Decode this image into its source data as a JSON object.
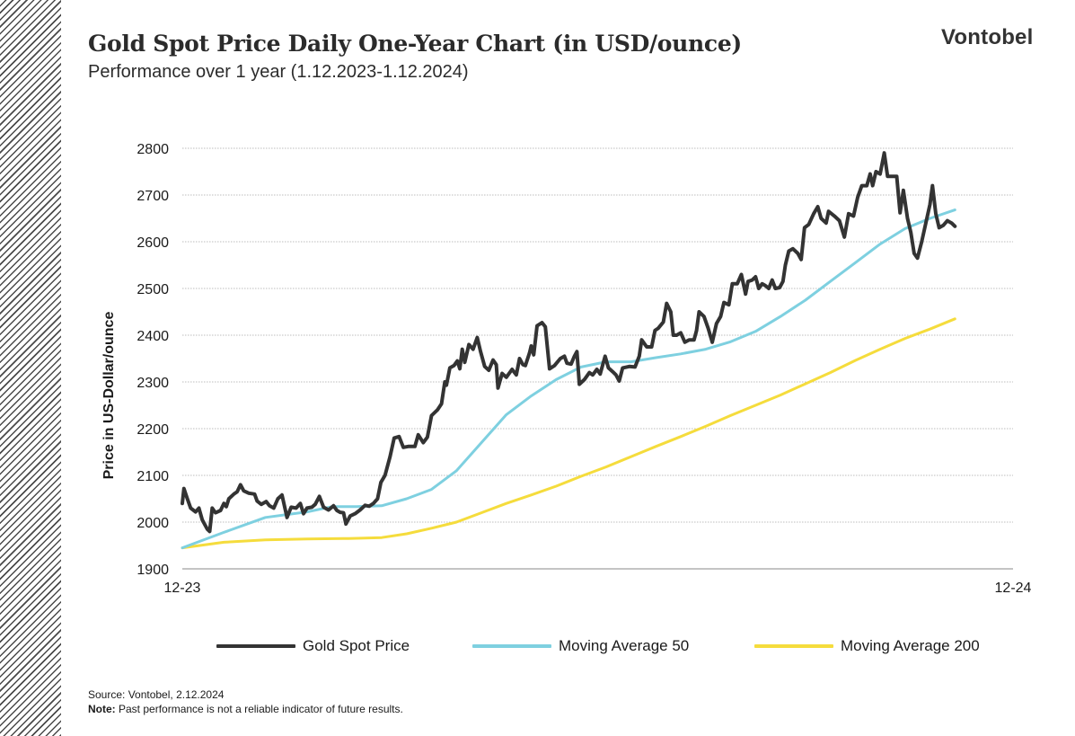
{
  "header": {
    "title": "Gold Spot Price Daily One-Year Chart (in USD/ounce)",
    "subtitle": "Performance over 1 year (1.12.2023-1.12.2024)",
    "brand": "Vontobel"
  },
  "footer": {
    "source": "Source: Vontobel,  2.12.2024",
    "note_label": "Note:",
    "note_text": " Past performance  is not a reliable indicator of future results."
  },
  "chart_data": {
    "type": "line",
    "title": "Gold Spot Price Daily One-Year Chart (in USD/ounce)",
    "subtitle": "Performance over 1 year (1.12.2023-1.12.2024)",
    "ylabel": "Price in US-Dollar/ounce",
    "xlabel": "",
    "x_tick_labels": [
      "12-23",
      "12-24"
    ],
    "x_range": [
      0,
      1
    ],
    "ylim": [
      1900,
      2800
    ],
    "yticks": [
      1900,
      2000,
      2100,
      2200,
      2300,
      2400,
      2500,
      2600,
      2700,
      2800
    ],
    "grid": "horizontal",
    "legend_position": "bottom",
    "x_note": "x values are fractions of the one-year period 12-23 to 12-24",
    "series": [
      {
        "name": "Gold Spot Price",
        "color": "#333333",
        "points": [
          [
            0.0,
            2040
          ],
          [
            0.002,
            2072
          ],
          [
            0.006,
            2050
          ],
          [
            0.01,
            2030
          ],
          [
            0.016,
            2022
          ],
          [
            0.02,
            2030
          ],
          [
            0.024,
            2005
          ],
          [
            0.03,
            1985
          ],
          [
            0.033,
            1980
          ],
          [
            0.036,
            2030
          ],
          [
            0.04,
            2020
          ],
          [
            0.046,
            2025
          ],
          [
            0.05,
            2040
          ],
          [
            0.053,
            2033
          ],
          [
            0.056,
            2050
          ],
          [
            0.062,
            2060
          ],
          [
            0.066,
            2065
          ],
          [
            0.07,
            2080
          ],
          [
            0.074,
            2067
          ],
          [
            0.08,
            2062
          ],
          [
            0.087,
            2060
          ],
          [
            0.09,
            2045
          ],
          [
            0.095,
            2038
          ],
          [
            0.101,
            2044
          ],
          [
            0.105,
            2035
          ],
          [
            0.11,
            2030
          ],
          [
            0.115,
            2050
          ],
          [
            0.12,
            2058
          ],
          [
            0.126,
            2010
          ],
          [
            0.131,
            2032
          ],
          [
            0.137,
            2030
          ],
          [
            0.142,
            2040
          ],
          [
            0.146,
            2018
          ],
          [
            0.15,
            2030
          ],
          [
            0.156,
            2032
          ],
          [
            0.16,
            2038
          ],
          [
            0.165,
            2055
          ],
          [
            0.17,
            2032
          ],
          [
            0.176,
            2026
          ],
          [
            0.182,
            2035
          ],
          [
            0.186,
            2025
          ],
          [
            0.19,
            2021
          ],
          [
            0.194,
            2020
          ],
          [
            0.197,
            1996
          ],
          [
            0.202,
            2013
          ],
          [
            0.208,
            2018
          ],
          [
            0.214,
            2026
          ],
          [
            0.22,
            2036
          ],
          [
            0.225,
            2034
          ],
          [
            0.23,
            2040
          ],
          [
            0.235,
            2050
          ],
          [
            0.239,
            2085
          ],
          [
            0.244,
            2100
          ],
          [
            0.25,
            2140
          ],
          [
            0.255,
            2180
          ],
          [
            0.261,
            2183
          ],
          [
            0.266,
            2160
          ],
          [
            0.272,
            2162
          ],
          [
            0.28,
            2162
          ],
          [
            0.284,
            2187
          ],
          [
            0.29,
            2170
          ],
          [
            0.295,
            2182
          ],
          [
            0.3,
            2228
          ],
          [
            0.307,
            2240
          ],
          [
            0.312,
            2253
          ],
          [
            0.316,
            2300
          ],
          [
            0.318,
            2293
          ],
          [
            0.322,
            2330
          ],
          [
            0.327,
            2335
          ],
          [
            0.331,
            2345
          ],
          [
            0.334,
            2328
          ],
          [
            0.337,
            2370
          ],
          [
            0.34,
            2342
          ],
          [
            0.345,
            2380
          ],
          [
            0.35,
            2370
          ],
          [
            0.355,
            2395
          ],
          [
            0.359,
            2365
          ],
          [
            0.364,
            2333
          ],
          [
            0.369,
            2325
          ],
          [
            0.374,
            2347
          ],
          [
            0.378,
            2337
          ],
          [
            0.38,
            2287
          ],
          [
            0.385,
            2318
          ],
          [
            0.39,
            2310
          ],
          [
            0.397,
            2327
          ],
          [
            0.402,
            2315
          ],
          [
            0.406,
            2350
          ],
          [
            0.41,
            2337
          ],
          [
            0.413,
            2335
          ],
          [
            0.418,
            2362
          ],
          [
            0.42,
            2377
          ],
          [
            0.423,
            2358
          ],
          [
            0.427,
            2420
          ],
          [
            0.433,
            2427
          ],
          [
            0.437,
            2418
          ],
          [
            0.442,
            2328
          ],
          [
            0.448,
            2335
          ],
          [
            0.455,
            2350
          ],
          [
            0.46,
            2355
          ],
          [
            0.463,
            2340
          ],
          [
            0.468,
            2338
          ],
          [
            0.472,
            2355
          ],
          [
            0.475,
            2365
          ],
          [
            0.478,
            2295
          ],
          [
            0.484,
            2305
          ],
          [
            0.49,
            2320
          ],
          [
            0.494,
            2315
          ],
          [
            0.499,
            2327
          ],
          [
            0.503,
            2317
          ],
          [
            0.509,
            2355
          ],
          [
            0.513,
            2330
          ],
          [
            0.518,
            2322
          ],
          [
            0.522,
            2315
          ],
          [
            0.526,
            2302
          ],
          [
            0.53,
            2330
          ],
          [
            0.538,
            2333
          ],
          [
            0.545,
            2332
          ],
          [
            0.55,
            2355
          ],
          [
            0.553,
            2390
          ],
          [
            0.559,
            2375
          ],
          [
            0.565,
            2375
          ],
          [
            0.569,
            2410
          ],
          [
            0.573,
            2415
          ],
          [
            0.579,
            2428
          ],
          [
            0.583,
            2468
          ],
          [
            0.588,
            2450
          ],
          [
            0.591,
            2400
          ],
          [
            0.595,
            2400
          ],
          [
            0.6,
            2405
          ],
          [
            0.605,
            2385
          ],
          [
            0.61,
            2390
          ],
          [
            0.616,
            2390
          ],
          [
            0.619,
            2410
          ],
          [
            0.622,
            2450
          ],
          [
            0.628,
            2440
          ],
          [
            0.633,
            2415
          ],
          [
            0.638,
            2385
          ],
          [
            0.643,
            2425
          ],
          [
            0.648,
            2440
          ],
          [
            0.652,
            2470
          ],
          [
            0.658,
            2465
          ],
          [
            0.662,
            2510
          ],
          [
            0.668,
            2510
          ],
          [
            0.673,
            2530
          ],
          [
            0.678,
            2488
          ],
          [
            0.681,
            2515
          ],
          [
            0.686,
            2518
          ],
          [
            0.69,
            2525
          ],
          [
            0.694,
            2500
          ],
          [
            0.698,
            2510
          ],
          [
            0.702,
            2506
          ],
          [
            0.706,
            2500
          ],
          [
            0.71,
            2518
          ],
          [
            0.714,
            2500
          ],
          [
            0.719,
            2502
          ],
          [
            0.723,
            2515
          ],
          [
            0.726,
            2550
          ],
          [
            0.73,
            2580
          ],
          [
            0.735,
            2585
          ],
          [
            0.741,
            2575
          ],
          [
            0.745,
            2562
          ],
          [
            0.749,
            2630
          ],
          [
            0.754,
            2637
          ],
          [
            0.76,
            2660
          ],
          [
            0.765,
            2675
          ],
          [
            0.769,
            2650
          ],
          [
            0.775,
            2640
          ],
          [
            0.778,
            2665
          ],
          [
            0.785,
            2655
          ],
          [
            0.791,
            2645
          ],
          [
            0.797,
            2610
          ],
          [
            0.802,
            2660
          ],
          [
            0.808,
            2655
          ],
          [
            0.813,
            2695
          ],
          [
            0.818,
            2720
          ],
          [
            0.824,
            2720
          ],
          [
            0.828,
            2745
          ],
          [
            0.831,
            2720
          ],
          [
            0.835,
            2750
          ],
          [
            0.84,
            2745
          ],
          [
            0.845,
            2790
          ],
          [
            0.849,
            2740
          ],
          [
            0.853,
            2740
          ],
          [
            0.86,
            2740
          ],
          [
            0.864,
            2662
          ],
          [
            0.868,
            2710
          ],
          [
            0.873,
            2650
          ],
          [
            0.877,
            2620
          ],
          [
            0.881,
            2575
          ],
          [
            0.885,
            2565
          ],
          [
            0.89,
            2600
          ],
          [
            0.895,
            2640
          ],
          [
            0.9,
            2680
          ],
          [
            0.903,
            2720
          ],
          [
            0.907,
            2660
          ],
          [
            0.911,
            2630
          ],
          [
            0.916,
            2635
          ],
          [
            0.921,
            2645
          ],
          [
            0.926,
            2640
          ],
          [
            0.93,
            2633
          ]
        ]
      },
      {
        "name": "Moving Average 50",
        "color": "#7ed0e0",
        "points": [
          [
            0.0,
            1945
          ],
          [
            0.05,
            1978
          ],
          [
            0.1,
            2010
          ],
          [
            0.15,
            2022
          ],
          [
            0.18,
            2033
          ],
          [
            0.21,
            2033
          ],
          [
            0.24,
            2035
          ],
          [
            0.27,
            2050
          ],
          [
            0.3,
            2070
          ],
          [
            0.33,
            2110
          ],
          [
            0.36,
            2170
          ],
          [
            0.39,
            2230
          ],
          [
            0.42,
            2270
          ],
          [
            0.45,
            2305
          ],
          [
            0.48,
            2332
          ],
          [
            0.51,
            2343
          ],
          [
            0.54,
            2343
          ],
          [
            0.57,
            2352
          ],
          [
            0.6,
            2360
          ],
          [
            0.63,
            2370
          ],
          [
            0.66,
            2386
          ],
          [
            0.69,
            2408
          ],
          [
            0.72,
            2440
          ],
          [
            0.75,
            2475
          ],
          [
            0.78,
            2515
          ],
          [
            0.81,
            2555
          ],
          [
            0.84,
            2595
          ],
          [
            0.87,
            2628
          ],
          [
            0.9,
            2650
          ],
          [
            0.93,
            2668
          ]
        ]
      },
      {
        "name": "Moving Average 200",
        "color": "#f5dc3c",
        "points": [
          [
            0.0,
            1945
          ],
          [
            0.05,
            1957
          ],
          [
            0.1,
            1962
          ],
          [
            0.15,
            1964
          ],
          [
            0.2,
            1965
          ],
          [
            0.24,
            1967
          ],
          [
            0.27,
            1975
          ],
          [
            0.3,
            1987
          ],
          [
            0.33,
            2000
          ],
          [
            0.36,
            2020
          ],
          [
            0.39,
            2040
          ],
          [
            0.42,
            2058
          ],
          [
            0.45,
            2077
          ],
          [
            0.48,
            2098
          ],
          [
            0.51,
            2118
          ],
          [
            0.54,
            2140
          ],
          [
            0.57,
            2162
          ],
          [
            0.6,
            2183
          ],
          [
            0.63,
            2205
          ],
          [
            0.66,
            2228
          ],
          [
            0.69,
            2250
          ],
          [
            0.72,
            2272
          ],
          [
            0.75,
            2296
          ],
          [
            0.78,
            2320
          ],
          [
            0.81,
            2346
          ],
          [
            0.84,
            2370
          ],
          [
            0.87,
            2393
          ],
          [
            0.9,
            2413
          ],
          [
            0.93,
            2435
          ]
        ]
      }
    ]
  }
}
